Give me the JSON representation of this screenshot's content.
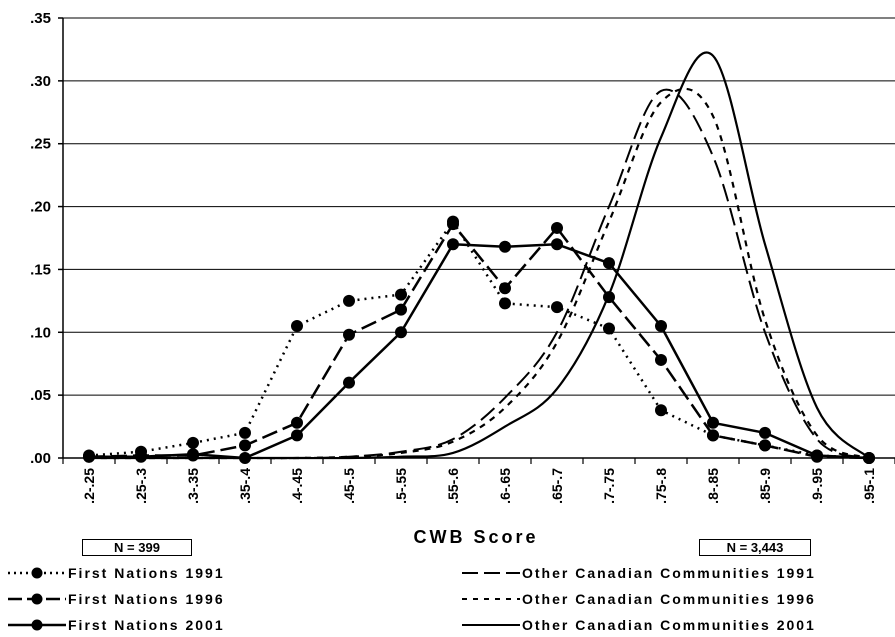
{
  "chart_data": {
    "type": "line",
    "xlabel": "CWB Score",
    "categories": [
      ".2-.25",
      ".25-.3",
      ".3-.35",
      ".35-.4",
      ".4-.45",
      ".45-.5",
      ".5-.55",
      ".55-.6",
      ".6-.65",
      ".65-.7",
      ".7-.75",
      ".75-.8",
      ".8-.85",
      ".85-.9",
      ".9-.95",
      ".95-.1"
    ],
    "ytick_labels": [
      ".00",
      ".05",
      ".10",
      ".15",
      ".20",
      ".25",
      ".30",
      ".35"
    ],
    "ylim": [
      0,
      0.35
    ],
    "grid": "horizontal",
    "legend_position": "bottom",
    "series": [
      {
        "name": "First Nations 1991",
        "style": "dotted-markers",
        "values": [
          0.002,
          0.005,
          0.012,
          0.02,
          0.105,
          0.125,
          0.13,
          0.188,
          0.123,
          0.12,
          0.103,
          0.038,
          0.018,
          0.01,
          0.002,
          0
        ]
      },
      {
        "name": "First Nations 1996",
        "style": "dashed-markers",
        "values": [
          0.001,
          0.002,
          0.002,
          0.01,
          0.028,
          0.098,
          0.118,
          0.186,
          0.135,
          0.183,
          0.128,
          0.078,
          0.018,
          0.01,
          0.001,
          0
        ]
      },
      {
        "name": "First Nations 2001",
        "style": "solid-markers",
        "values": [
          0.001,
          0.001,
          0.003,
          0,
          0.018,
          0.06,
          0.1,
          0.17,
          0.168,
          0.17,
          0.155,
          0.105,
          0.028,
          0.02,
          0.002,
          0
        ]
      },
      {
        "name": "Other Canadian Communities 1991",
        "style": "longdash",
        "values": [
          0,
          0,
          0,
          0,
          0,
          0.001,
          0.005,
          0.015,
          0.048,
          0.1,
          0.2,
          0.292,
          0.24,
          0.1,
          0.015,
          0
        ]
      },
      {
        "name": "Other Canadian Communities 1996",
        "style": "shortdash",
        "values": [
          0,
          0,
          0,
          0,
          0,
          0.001,
          0.004,
          0.013,
          0.04,
          0.092,
          0.188,
          0.283,
          0.272,
          0.11,
          0.018,
          0
        ]
      },
      {
        "name": "Other Canadian Communities 2001",
        "style": "solid",
        "values": [
          0,
          0,
          0,
          0,
          0,
          0,
          0.001,
          0.004,
          0.025,
          0.055,
          0.13,
          0.255,
          0.32,
          0.17,
          0.04,
          0
        ]
      }
    ]
  },
  "annotations": {
    "n_first_nations": "N = 399",
    "n_other": "N = 3,443"
  },
  "colors": {
    "line": "#000000",
    "grid": "#000000",
    "background": "#ffffff"
  }
}
